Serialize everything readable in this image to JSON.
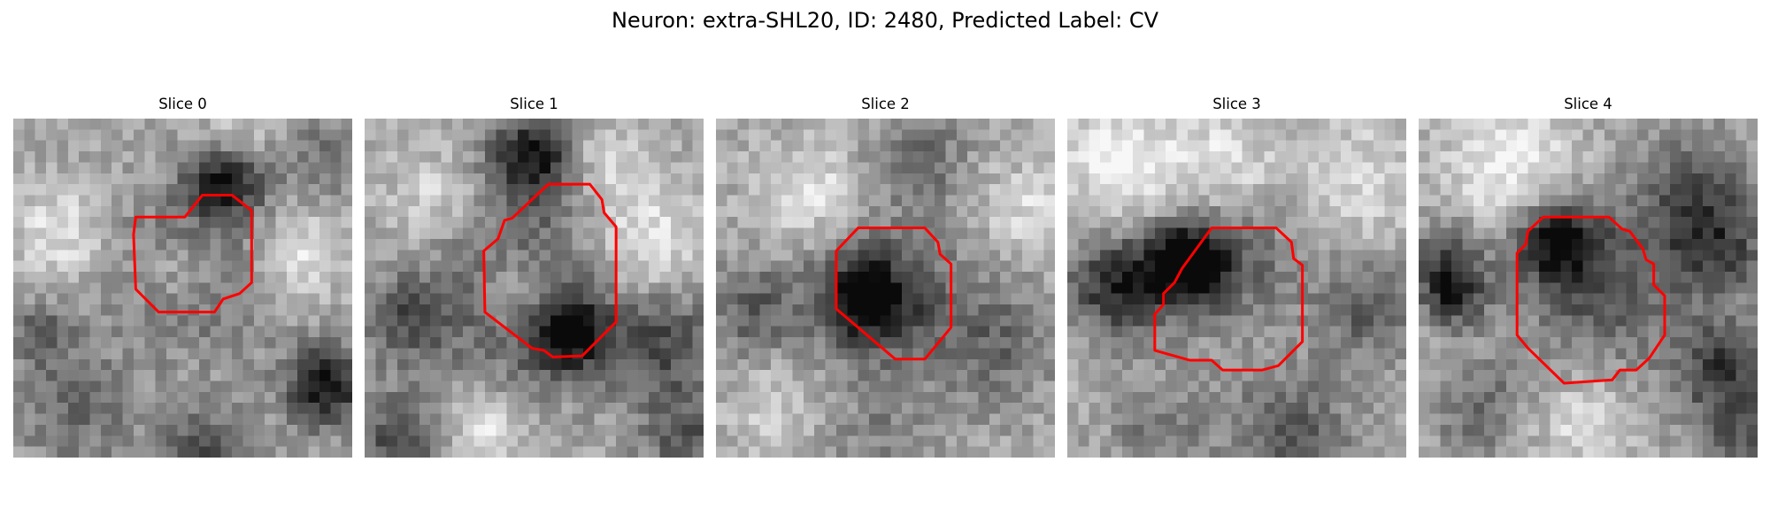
{
  "figure": {
    "title": "Neuron: extra-SHL20, ID: 2480, Predicted Label: CV"
  },
  "slices": [
    {
      "title": "Slice 0"
    },
    {
      "title": "Slice 1"
    },
    {
      "title": "Slice 2"
    },
    {
      "title": "Slice 3"
    },
    {
      "title": "Slice 4"
    }
  ],
  "colors": {
    "contour": "#ff0000",
    "colormap": "grayscale"
  }
}
